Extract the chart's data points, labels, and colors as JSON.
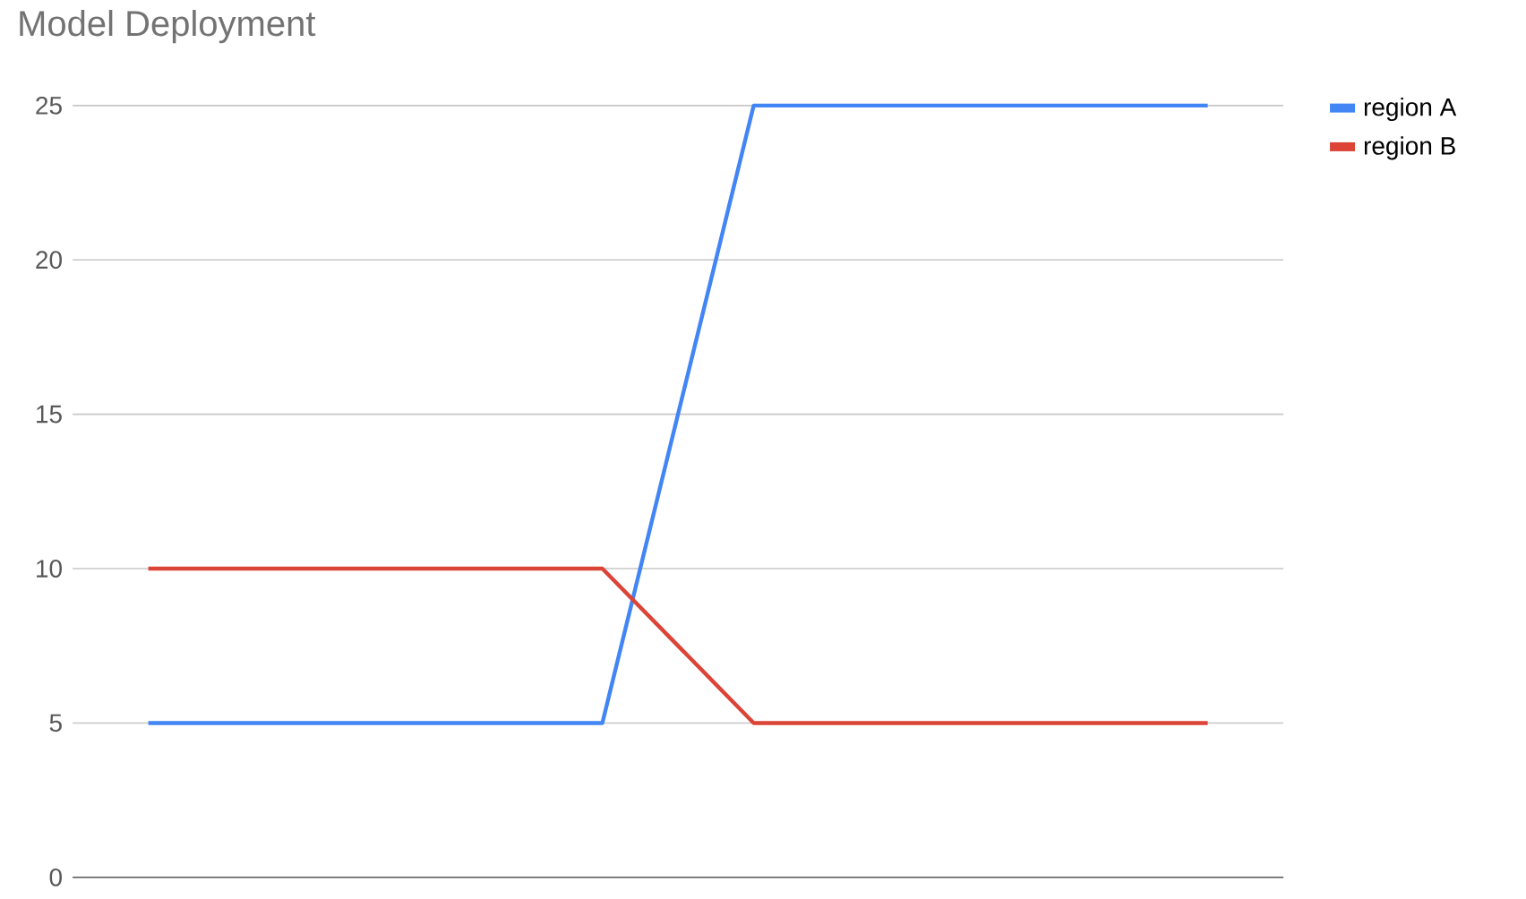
{
  "chart_data": {
    "type": "line",
    "title": "Model Deployment",
    "categories": [
      null,
      null,
      null,
      null,
      null,
      null,
      null,
      null
    ],
    "series": [
      {
        "name": "region A",
        "color": "#4285f4",
        "values": [
          5,
          5,
          5,
          5,
          25,
          25,
          25,
          25
        ]
      },
      {
        "name": "region B",
        "color": "#db4437",
        "values": [
          10,
          10,
          10,
          10,
          5,
          5,
          5,
          5
        ]
      }
    ],
    "ylim": [
      0,
      25
    ],
    "yticks": [
      0,
      5,
      10,
      15,
      20,
      25
    ],
    "grid": "y",
    "legend": "top right",
    "marker": "none",
    "line_style": "solid"
  }
}
